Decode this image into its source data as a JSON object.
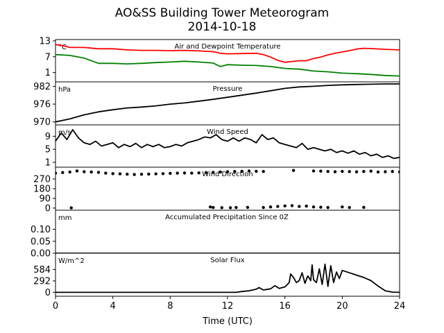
{
  "title_line1": "AO&SS Building Tower Meteorogram",
  "title_line2": "2014-10-18",
  "xlabel": "Time (UTC)",
  "x_tick_labels": [
    "0",
    "4",
    "8",
    "12",
    "16",
    "20",
    "24"
  ],
  "chart_data": [
    {
      "type": "line",
      "title": "Air and Dewpoint Temperature",
      "unit_label": "°C",
      "xlim": [
        0,
        24
      ],
      "ylim": [
        -2.5,
        13.5
      ],
      "yticks": [
        13,
        7,
        1
      ],
      "series": [
        {
          "color": "#ff0000",
          "points": [
            [
              0,
              11.6
            ],
            [
              0.5,
              11.2
            ],
            [
              1,
              10.5
            ],
            [
              2,
              10.5
            ],
            [
              3,
              10.0
            ],
            [
              4,
              10.0
            ],
            [
              5,
              9.6
            ],
            [
              6,
              9.4
            ],
            [
              7,
              9.4
            ],
            [
              8,
              9.3
            ],
            [
              9,
              9.4
            ],
            [
              10,
              9.2
            ],
            [
              11,
              8.9
            ],
            [
              11.5,
              8.3
            ],
            [
              12,
              8.1
            ],
            [
              13,
              8.2
            ],
            [
              14,
              8.3
            ],
            [
              14.5,
              7.8
            ],
            [
              15,
              6.9
            ],
            [
              15.5,
              5.6
            ],
            [
              16,
              4.9
            ],
            [
              16.5,
              5.2
            ],
            [
              17,
              5.5
            ],
            [
              17.5,
              5.5
            ],
            [
              18,
              6.3
            ],
            [
              18.5,
              6.9
            ],
            [
              19,
              7.7
            ],
            [
              19.5,
              8.3
            ],
            [
              20,
              8.8
            ],
            [
              20.5,
              9.3
            ],
            [
              21,
              9.9
            ],
            [
              21.5,
              10.2
            ],
            [
              22,
              10.1
            ],
            [
              23,
              9.8
            ],
            [
              24,
              9.6
            ]
          ]
        },
        {
          "color": "#008000",
          "points": [
            [
              0,
              7.8
            ],
            [
              1,
              7.5
            ],
            [
              2,
              6.5
            ],
            [
              3,
              4.5
            ],
            [
              4,
              4.5
            ],
            [
              5,
              4.3
            ],
            [
              6,
              4.5
            ],
            [
              7,
              4.8
            ],
            [
              8,
              5.0
            ],
            [
              9,
              5.3
            ],
            [
              10,
              5.0
            ],
            [
              11,
              4.6
            ],
            [
              11.5,
              3.3
            ],
            [
              12,
              4.0
            ],
            [
              13,
              3.8
            ],
            [
              14,
              3.7
            ],
            [
              15,
              3.3
            ],
            [
              16,
              2.6
            ],
            [
              17,
              2.3
            ],
            [
              18,
              1.6
            ],
            [
              19,
              1.3
            ],
            [
              20,
              0.8
            ],
            [
              21,
              0.6
            ],
            [
              22,
              0.3
            ],
            [
              23,
              -0.1
            ],
            [
              24,
              -0.3
            ]
          ]
        }
      ]
    },
    {
      "type": "line",
      "title": "Pressure",
      "unit_label": "hPa",
      "xlim": [
        0,
        24
      ],
      "ylim": [
        969,
        983.5
      ],
      "yticks": [
        982,
        976,
        970
      ],
      "series": [
        {
          "color": "#000000",
          "points": [
            [
              0,
              970.0
            ],
            [
              1,
              971.0
            ],
            [
              2,
              972.4
            ],
            [
              3,
              973.4
            ],
            [
              4,
              974.1
            ],
            [
              5,
              974.7
            ],
            [
              6,
              975.0
            ],
            [
              7,
              975.4
            ],
            [
              8,
              976.0
            ],
            [
              9,
              976.4
            ],
            [
              10,
              977.0
            ],
            [
              11,
              977.6
            ],
            [
              12,
              978.3
            ],
            [
              13,
              979.0
            ],
            [
              14,
              979.7
            ],
            [
              15,
              980.5
            ],
            [
              16,
              981.3
            ],
            [
              17,
              981.8
            ],
            [
              18,
              982.0
            ],
            [
              19,
              982.3
            ],
            [
              20,
              982.5
            ],
            [
              21,
              982.6
            ],
            [
              22,
              982.7
            ],
            [
              23,
              982.8
            ],
            [
              24,
              982.8
            ]
          ]
        }
      ]
    },
    {
      "type": "line",
      "title": "Wind Speed",
      "unit_label": "m/s",
      "xlim": [
        0,
        24
      ],
      "ylim": [
        -0.5,
        12.5
      ],
      "yticks": [
        9,
        5,
        1
      ],
      "series": [
        {
          "color": "#000000",
          "points": [
            [
              0,
              7.5
            ],
            [
              0.4,
              10
            ],
            [
              0.8,
              8
            ],
            [
              1.2,
              11
            ],
            [
              1.6,
              8.5
            ],
            [
              2,
              7
            ],
            [
              2.4,
              6.5
            ],
            [
              2.8,
              7.5
            ],
            [
              3.2,
              6
            ],
            [
              3.6,
              6.5
            ],
            [
              4,
              7
            ],
            [
              4.4,
              5.5
            ],
            [
              4.8,
              6.5
            ],
            [
              5.2,
              5.8
            ],
            [
              5.6,
              6.8
            ],
            [
              6,
              5.5
            ],
            [
              6.4,
              6.5
            ],
            [
              6.8,
              5.8
            ],
            [
              7.2,
              6.5
            ],
            [
              7.6,
              5.5
            ],
            [
              8,
              5.8
            ],
            [
              8.4,
              6.5
            ],
            [
              8.8,
              6
            ],
            [
              9.2,
              7
            ],
            [
              9.6,
              7.5
            ],
            [
              10,
              8
            ],
            [
              10.4,
              8.8
            ],
            [
              10.8,
              8.5
            ],
            [
              11.2,
              9.5
            ],
            [
              11.6,
              8
            ],
            [
              12,
              7.5
            ],
            [
              12.4,
              8.5
            ],
            [
              12.8,
              7.5
            ],
            [
              13.2,
              8.5
            ],
            [
              13.6,
              8
            ],
            [
              14,
              7
            ],
            [
              14.4,
              9.5
            ],
            [
              14.8,
              8
            ],
            [
              15.2,
              8.5
            ],
            [
              15.6,
              7
            ],
            [
              16,
              6.5
            ],
            [
              16.4,
              6
            ],
            [
              16.8,
              5.5
            ],
            [
              17.2,
              6.8
            ],
            [
              17.6,
              5
            ],
            [
              18,
              5.5
            ],
            [
              18.4,
              5
            ],
            [
              18.8,
              4.5
            ],
            [
              19.2,
              5
            ],
            [
              19.6,
              4
            ],
            [
              20,
              4.5
            ],
            [
              20.4,
              3.8
            ],
            [
              20.8,
              4.5
            ],
            [
              21.2,
              3.5
            ],
            [
              21.6,
              4
            ],
            [
              22,
              3
            ],
            [
              22.4,
              3.5
            ],
            [
              22.8,
              2.5
            ],
            [
              23.2,
              3
            ],
            [
              23.6,
              2.2
            ],
            [
              24,
              2.5
            ]
          ]
        }
      ]
    },
    {
      "type": "scatter",
      "title": "Wind Direction",
      "xlim": [
        0,
        24
      ],
      "ylim": [
        -20,
        380
      ],
      "yticks": [
        270,
        180,
        90,
        0
      ],
      "series": [
        {
          "color": "#000000",
          "points": [
            [
              0,
              325
            ],
            [
              0.5,
              330
            ],
            [
              1,
              335
            ],
            [
              1.5,
              345
            ],
            [
              2,
              338
            ],
            [
              2.5,
              335
            ],
            [
              3,
              332
            ],
            [
              3.5,
              325
            ],
            [
              4,
              320
            ],
            [
              4.5,
              318
            ],
            [
              5,
              315
            ],
            [
              5.5,
              312
            ],
            [
              6,
              314
            ],
            [
              6.5,
              316
            ],
            [
              7,
              318
            ],
            [
              7.5,
              320
            ],
            [
              8,
              322
            ],
            [
              8.5,
              325
            ],
            [
              9,
              326
            ],
            [
              9.5,
              325
            ],
            [
              10,
              327
            ],
            [
              10.5,
              330
            ],
            [
              11,
              332
            ],
            [
              11.5,
              335
            ],
            [
              12,
              338
            ],
            [
              12.5,
              340
            ],
            [
              13,
              342
            ],
            [
              13.5,
              345
            ],
            [
              14,
              342
            ],
            [
              14.5,
              340
            ],
            [
              16.6,
              350
            ],
            [
              18,
              345
            ],
            [
              18.5,
              343
            ],
            [
              19,
              340
            ],
            [
              19.5,
              338
            ],
            [
              20,
              341
            ],
            [
              20.5,
              339
            ],
            [
              21,
              337
            ],
            [
              21.5,
              340
            ],
            [
              22,
              343
            ],
            [
              22.5,
              335
            ],
            [
              23,
              338
            ],
            [
              23.5,
              340
            ],
            [
              24,
              336
            ],
            [
              1.1,
              2
            ],
            [
              10.8,
              10
            ],
            [
              11,
              5
            ],
            [
              11.6,
              4
            ],
            [
              12.2,
              3
            ],
            [
              12.6,
              5
            ],
            [
              13.4,
              6
            ],
            [
              14.5,
              5
            ],
            [
              15,
              10
            ],
            [
              15.5,
              15
            ],
            [
              16,
              20
            ],
            [
              16.5,
              22
            ],
            [
              17,
              15
            ],
            [
              17.5,
              18
            ],
            [
              18,
              10
            ],
            [
              18.5,
              8
            ],
            [
              19,
              5
            ],
            [
              20,
              10
            ],
            [
              20.5,
              5
            ],
            [
              21.5,
              6
            ]
          ]
        }
      ]
    },
    {
      "type": "line",
      "title": "Accumulated Precipitation Since 0Z",
      "unit_label": "mm",
      "xlim": [
        0,
        24
      ],
      "ylim": [
        0,
        0.18
      ],
      "yticks": [
        0.1,
        0.05,
        0.0
      ],
      "ytick_labels": [
        "0.10",
        "0.05",
        "0.00"
      ],
      "series": [
        {
          "color": "#000000",
          "points": [
            [
              0,
              0
            ],
            [
              24,
              0
            ]
          ]
        }
      ]
    },
    {
      "type": "line",
      "title": "Solar Flux",
      "unit_label": "W/m^2",
      "xlim": [
        0,
        24
      ],
      "ylim": [
        -100,
        1000
      ],
      "yticks": [
        584,
        292,
        0
      ],
      "series": [
        {
          "color": "#000000",
          "points": [
            [
              0,
              0
            ],
            [
              12.6,
              0
            ],
            [
              13,
              20
            ],
            [
              13.5,
              40
            ],
            [
              14,
              80
            ],
            [
              14.2,
              120
            ],
            [
              14.5,
              60
            ],
            [
              15,
              90
            ],
            [
              15.3,
              170
            ],
            [
              15.6,
              100
            ],
            [
              16,
              140
            ],
            [
              16.3,
              250
            ],
            [
              16.4,
              470
            ],
            [
              16.6,
              380
            ],
            [
              16.8,
              250
            ],
            [
              17,
              300
            ],
            [
              17.2,
              500
            ],
            [
              17.4,
              230
            ],
            [
              17.6,
              420
            ],
            [
              17.8,
              300
            ],
            [
              17.9,
              700
            ],
            [
              18,
              320
            ],
            [
              18.2,
              250
            ],
            [
              18.4,
              600
            ],
            [
              18.6,
              200
            ],
            [
              18.8,
              720
            ],
            [
              19,
              150
            ],
            [
              19.2,
              680
            ],
            [
              19.4,
              250
            ],
            [
              19.6,
              520
            ],
            [
              19.8,
              350
            ],
            [
              20,
              560
            ],
            [
              20.5,
              500
            ],
            [
              21,
              440
            ],
            [
              21.5,
              380
            ],
            [
              22,
              300
            ],
            [
              22.5,
              160
            ],
            [
              23,
              40
            ],
            [
              23.5,
              5
            ],
            [
              24,
              0
            ]
          ]
        }
      ]
    }
  ]
}
